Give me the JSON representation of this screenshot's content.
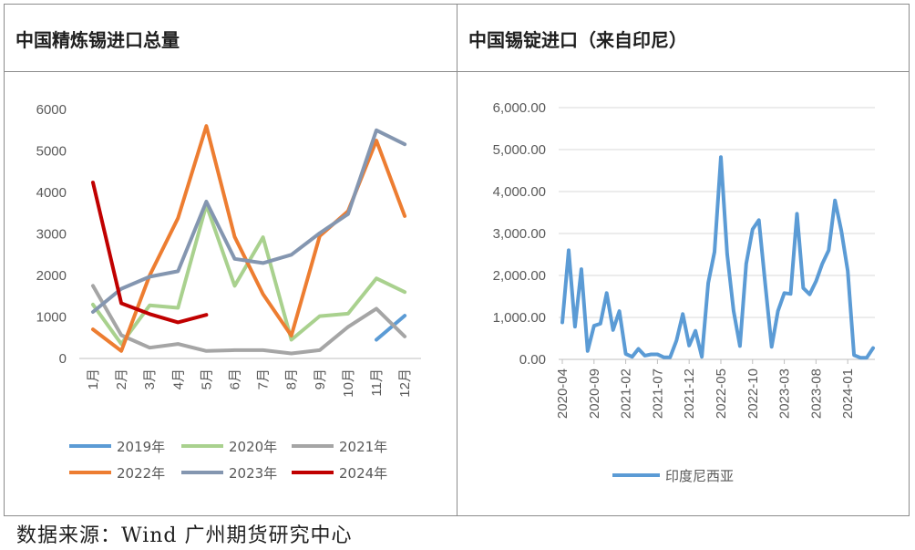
{
  "left_panel": {
    "title": "中国精炼锡进口总量"
  },
  "right_panel": {
    "title": "中国锡锭进口（来自印尼）"
  },
  "source_note": "数据来源：Wind 广州期货研究中心",
  "chart_data": [
    {
      "type": "line",
      "title": "中国精炼锡进口总量",
      "categories": [
        "1月",
        "2月",
        "3月",
        "4月",
        "5月",
        "6月",
        "7月",
        "8月",
        "9月",
        "10月",
        "11月",
        "12月"
      ],
      "ylim": [
        0,
        6000
      ],
      "yticks": [
        "0",
        "1000",
        "2000",
        "3000",
        "4000",
        "5000",
        "6000"
      ],
      "grid": false,
      "legend_position": "bottom",
      "series": [
        {
          "name": "2019年",
          "color": "#5b9bd5",
          "values": [
            null,
            null,
            null,
            null,
            null,
            null,
            null,
            null,
            null,
            null,
            450,
            1030
          ]
        },
        {
          "name": "2020年",
          "color": "#a9d18e",
          "values": [
            1300,
            350,
            1280,
            1220,
            3700,
            1750,
            2920,
            450,
            1020,
            1080,
            1930,
            1600
          ]
        },
        {
          "name": "2021年",
          "color": "#a5a5a5",
          "values": [
            1750,
            560,
            260,
            350,
            180,
            200,
            200,
            120,
            200,
            760,
            1200,
            530
          ]
        },
        {
          "name": "2022年",
          "color": "#ed7d31",
          "values": [
            700,
            180,
            2000,
            3380,
            5600,
            2930,
            1550,
            550,
            2950,
            3550,
            5250,
            3430
          ]
        },
        {
          "name": "2023年",
          "color": "#8496b0",
          "values": [
            1120,
            1680,
            1970,
            2100,
            3780,
            2400,
            2300,
            2500,
            3020,
            3480,
            5500,
            5160
          ]
        },
        {
          "name": "2024年",
          "color": "#c00000",
          "values": [
            4240,
            1330,
            1070,
            870,
            1050,
            null,
            null,
            null,
            null,
            null,
            null,
            null
          ]
        }
      ]
    },
    {
      "type": "line",
      "title": "中国锡锭进口（来自印尼）",
      "x_start": "2020-04",
      "x_ticks": [
        "2020-04",
        "2020-09",
        "2021-02",
        "2021-07",
        "2021-12",
        "2022-05",
        "2022-10",
        "2023-03",
        "2023-08",
        "2024-01"
      ],
      "ylim": [
        0,
        6000
      ],
      "yticks": [
        "0.00",
        "1,000.00",
        "2,000.00",
        "3,000.00",
        "4,000.00",
        "5,000.00",
        "6,000.00"
      ],
      "grid": true,
      "legend_position": "bottom",
      "series": [
        {
          "name": "印度尼西亚",
          "color": "#5b9bd5",
          "values": [
            880,
            2600,
            780,
            2150,
            200,
            800,
            850,
            1580,
            700,
            1150,
            130,
            60,
            250,
            90,
            120,
            120,
            50,
            50,
            450,
            1080,
            330,
            680,
            60,
            1820,
            2560,
            4820,
            2510,
            1160,
            320,
            2280,
            3100,
            3320,
            1790,
            300,
            1150,
            1580,
            1560,
            3470,
            1700,
            1550,
            1860,
            2280,
            2600,
            3790,
            3060,
            2110,
            100,
            40,
            40,
            270
          ]
        }
      ]
    }
  ]
}
